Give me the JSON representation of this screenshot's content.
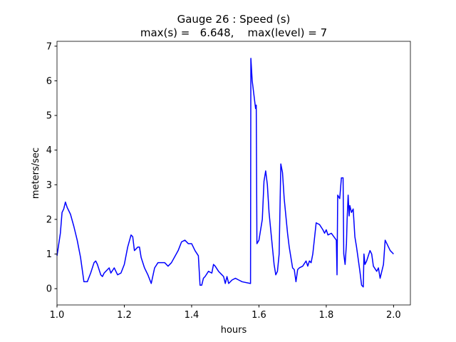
{
  "chart_data": {
    "type": "line",
    "title": "Gauge 26 : Speed (s)",
    "subtitle": "max(s) =   6.648,    max(level) = 7",
    "x_label": "hours",
    "y_label": "meters/sec",
    "xlim": [
      1.0,
      2.05
    ],
    "ylim": [
      -0.47,
      7.14
    ],
    "xticks": [
      {
        "value": 1.0,
        "label": "1.0"
      },
      {
        "value": 1.2,
        "label": "1.2"
      },
      {
        "value": 1.4,
        "label": "1.4"
      },
      {
        "value": 1.6,
        "label": "1.6"
      },
      {
        "value": 1.8,
        "label": "1.8"
      },
      {
        "value": 2.0,
        "label": "2.0"
      }
    ],
    "yticks": [
      0,
      1,
      2,
      3,
      4,
      5,
      6,
      7
    ],
    "grid": false,
    "series": [
      {
        "name": "s",
        "color": "#0000ff",
        "x": [
          1.0,
          1.01,
          1.015,
          1.02,
          1.025,
          1.03,
          1.04,
          1.05,
          1.06,
          1.07,
          1.08,
          1.09,
          1.1,
          1.11,
          1.115,
          1.12,
          1.13,
          1.135,
          1.14,
          1.15,
          1.155,
          1.16,
          1.17,
          1.18,
          1.19,
          1.2,
          1.21,
          1.22,
          1.225,
          1.23,
          1.24,
          1.245,
          1.25,
          1.26,
          1.27,
          1.28,
          1.29,
          1.3,
          1.32,
          1.33,
          1.34,
          1.36,
          1.37,
          1.38,
          1.39,
          1.4,
          1.41,
          1.42,
          1.425,
          1.43,
          1.435,
          1.44,
          1.45,
          1.46,
          1.465,
          1.47,
          1.48,
          1.49,
          1.495,
          1.5,
          1.505,
          1.51,
          1.52,
          1.53,
          1.54,
          1.55,
          1.575,
          1.576,
          1.58,
          1.585,
          1.59,
          1.592,
          1.594,
          1.6,
          1.61,
          1.615,
          1.62,
          1.625,
          1.63,
          1.64,
          1.645,
          1.65,
          1.655,
          1.66,
          1.665,
          1.67,
          1.675,
          1.68,
          1.685,
          1.69,
          1.7,
          1.705,
          1.71,
          1.715,
          1.72,
          1.73,
          1.74,
          1.745,
          1.75,
          1.755,
          1.76,
          1.77,
          1.78,
          1.79,
          1.795,
          1.8,
          1.805,
          1.815,
          1.83,
          1.832,
          1.834,
          1.84,
          1.845,
          1.85,
          1.852,
          1.856,
          1.86,
          1.862,
          1.865,
          1.868,
          1.87,
          1.875,
          1.88,
          1.885,
          1.89,
          1.9,
          1.905,
          1.91,
          1.912,
          1.915,
          1.92,
          1.93,
          1.935,
          1.94,
          1.95,
          1.955,
          1.96,
          1.97,
          1.975,
          1.98,
          1.99,
          2.0
        ],
        "values": [
          0.95,
          1.6,
          2.2,
          2.3,
          2.5,
          2.35,
          2.15,
          1.8,
          1.4,
          0.9,
          0.2,
          0.2,
          0.45,
          0.75,
          0.8,
          0.7,
          0.4,
          0.35,
          0.45,
          0.55,
          0.6,
          0.45,
          0.6,
          0.4,
          0.45,
          0.7,
          1.2,
          1.55,
          1.5,
          1.1,
          1.2,
          1.2,
          0.9,
          0.6,
          0.4,
          0.15,
          0.6,
          0.75,
          0.75,
          0.65,
          0.75,
          1.1,
          1.35,
          1.4,
          1.3,
          1.3,
          1.1,
          0.95,
          0.1,
          0.1,
          0.3,
          0.35,
          0.5,
          0.45,
          0.7,
          0.65,
          0.5,
          0.4,
          0.35,
          0.15,
          0.35,
          0.15,
          0.25,
          0.3,
          0.25,
          0.2,
          0.15,
          6.648,
          6.0,
          5.6,
          5.2,
          5.3,
          1.3,
          1.4,
          2.0,
          3.1,
          3.4,
          3.0,
          2.2,
          1.2,
          0.7,
          0.4,
          0.5,
          1.0,
          3.6,
          3.35,
          2.6,
          2.1,
          1.6,
          1.2,
          0.6,
          0.55,
          0.2,
          0.55,
          0.6,
          0.65,
          0.8,
          0.65,
          0.8,
          0.75,
          1.0,
          1.9,
          1.85,
          1.7,
          1.6,
          1.7,
          1.55,
          1.6,
          1.4,
          0.4,
          2.7,
          2.6,
          3.2,
          3.2,
          1.0,
          0.7,
          1.3,
          2.0,
          2.7,
          2.1,
          2.4,
          2.2,
          2.3,
          1.5,
          1.2,
          0.5,
          0.1,
          0.05,
          1.0,
          0.7,
          0.8,
          1.1,
          1.0,
          0.65,
          0.5,
          0.6,
          0.3,
          0.7,
          1.4,
          1.3,
          1.1,
          1.0
        ]
      }
    ]
  }
}
